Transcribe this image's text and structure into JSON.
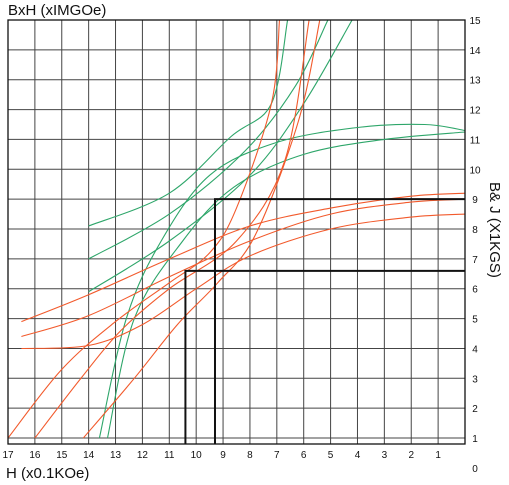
{
  "chart_data": {
    "type": "line",
    "title": "BxH (xIMGOe)",
    "xlabel": "H (x0.1KOe)",
    "ylabel": "B& J (X1KGS)",
    "x_ticks": [
      "17",
      "16",
      "15",
      "14",
      "13",
      "12",
      "11",
      "10",
      "9",
      "8",
      "7",
      "6",
      "5",
      "4",
      "3",
      "2",
      "1"
    ],
    "y_ticks": [
      "0",
      "1",
      "2",
      "3",
      "4",
      "5",
      "6",
      "7",
      "8",
      "9",
      "10",
      "11",
      "12",
      "13",
      "14",
      "15"
    ],
    "xlim": [
      17,
      0
    ],
    "ylim": [
      0.8,
      15
    ],
    "grid": true,
    "colors": {
      "demag_curves": "#f25a2c",
      "energy_curves": "#2ea66a",
      "markers": "#111111"
    },
    "demagnetization_curves": [
      {
        "points": [
          [
            16.5,
            4.9
          ],
          [
            14,
            5.8
          ],
          [
            11,
            7.0
          ],
          [
            8,
            8.1
          ],
          [
            5,
            8.7
          ],
          [
            2,
            9.1
          ],
          [
            0,
            9.2
          ]
        ]
      },
      {
        "points": [
          [
            16.5,
            4.4
          ],
          [
            14,
            5.1
          ],
          [
            11,
            6.4
          ],
          [
            8,
            7.6
          ],
          [
            5,
            8.5
          ],
          [
            2,
            8.9
          ],
          [
            0,
            9.0
          ]
        ]
      },
      {
        "points": [
          [
            16.5,
            4.0
          ],
          [
            14,
            4.1
          ],
          [
            12,
            4.8
          ],
          [
            10,
            6.0
          ],
          [
            8,
            7.1
          ],
          [
            5,
            8.0
          ],
          [
            2,
            8.4
          ],
          [
            0,
            8.5
          ]
        ]
      },
      {
        "points": [
          [
            17,
            1.0
          ],
          [
            15,
            3.3
          ],
          [
            13,
            4.9
          ],
          [
            11,
            6.2
          ],
          [
            9.5,
            7.2
          ],
          [
            8.5,
            8.7
          ],
          [
            7.2,
            12.2
          ],
          [
            6.9,
            15
          ]
        ]
      },
      {
        "points": [
          [
            16,
            1.0
          ],
          [
            14.2,
            3.1
          ],
          [
            12.8,
            4.6
          ],
          [
            11,
            6.0
          ],
          [
            8.5,
            7.6
          ],
          [
            6.7,
            10.3
          ],
          [
            5.8,
            15
          ]
        ]
      },
      {
        "points": [
          [
            14.2,
            1.0
          ],
          [
            12.3,
            3.0
          ],
          [
            10.7,
            4.8
          ],
          [
            9.2,
            6.2
          ],
          [
            7.8,
            7.8
          ],
          [
            6.2,
            11.6
          ],
          [
            5.4,
            15
          ]
        ]
      }
    ],
    "energy_curves": [
      {
        "points": [
          [
            14,
            8.1
          ],
          [
            11,
            9.2
          ],
          [
            8.7,
            11.1
          ],
          [
            7.2,
            12.2
          ],
          [
            6.6,
            15
          ]
        ]
      },
      {
        "points": [
          [
            14,
            7.0
          ],
          [
            11,
            8.5
          ],
          [
            8.2,
            10.6
          ],
          [
            6.3,
            12.8
          ],
          [
            5.1,
            15
          ]
        ]
      },
      {
        "points": [
          [
            14,
            5.9
          ],
          [
            11,
            7.6
          ],
          [
            8,
            9.8
          ],
          [
            6,
            12.2
          ],
          [
            4.2,
            15
          ]
        ]
      },
      {
        "points": [
          [
            13.6,
            1.0
          ],
          [
            12.6,
            5.0
          ],
          [
            11.3,
            7.6
          ],
          [
            9.5,
            9.8
          ],
          [
            7,
            10.9
          ],
          [
            4,
            11.4
          ],
          [
            1.5,
            11.5
          ],
          [
            0,
            11.3
          ]
        ]
      },
      {
        "points": [
          [
            13.3,
            1.0
          ],
          [
            12.3,
            5.0
          ],
          [
            10.5,
            7.6
          ],
          [
            8.6,
            9.4
          ],
          [
            6,
            10.5
          ],
          [
            3,
            11.0
          ],
          [
            0,
            11.25
          ]
        ]
      }
    ],
    "operating_points": [
      {
        "H": 9.3,
        "B": 9.0
      },
      {
        "H": 10.4,
        "B": 6.6
      }
    ]
  }
}
